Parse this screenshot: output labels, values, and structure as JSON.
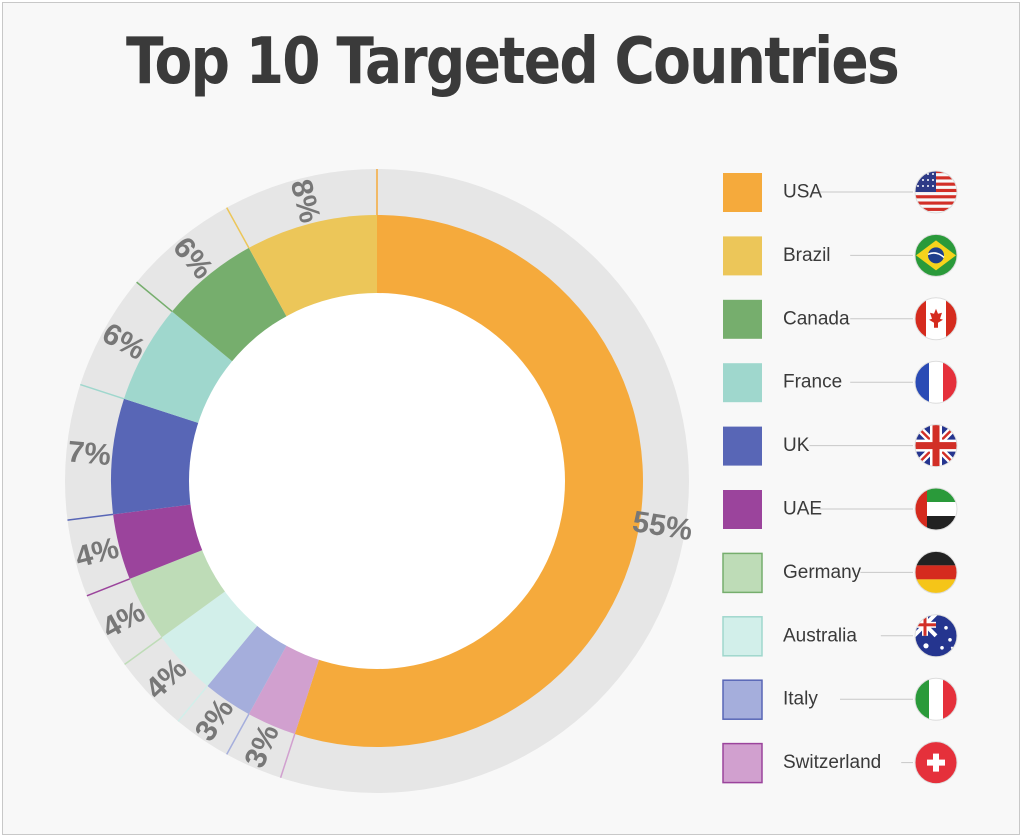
{
  "title": "Top 10 Targeted Countries",
  "chart_data": {
    "type": "pie",
    "title": "Top 10 Targeted Countries",
    "categories": [
      "USA",
      "Brazil",
      "Canada",
      "France",
      "UK",
      "UAE",
      "Germany",
      "Australia",
      "Italy",
      "Switzerland"
    ],
    "values": [
      55,
      8,
      6,
      6,
      7,
      4,
      4,
      4,
      3,
      3
    ],
    "labels": [
      "55%",
      "8%",
      "6%",
      "6%",
      "7%",
      "4%",
      "4%",
      "4%",
      "3%",
      "3%"
    ],
    "colors": [
      "#f5aa3c",
      "#ecc659",
      "#76ae6d",
      "#9fd7cd",
      "#5866b6",
      "#9b449c",
      "#bedcb7",
      "#d2efea",
      "#a5aedc",
      "#d1a0cf"
    ],
    "flags": [
      "flag-usa-icon",
      "flag-brazil-icon",
      "flag-canada-icon",
      "flag-france-icon",
      "flag-uk-icon",
      "flag-uae-icon",
      "flag-germany-icon",
      "flag-australia-icon",
      "flag-italy-icon",
      "flag-switzerland-icon"
    ],
    "legend_position": "right"
  }
}
